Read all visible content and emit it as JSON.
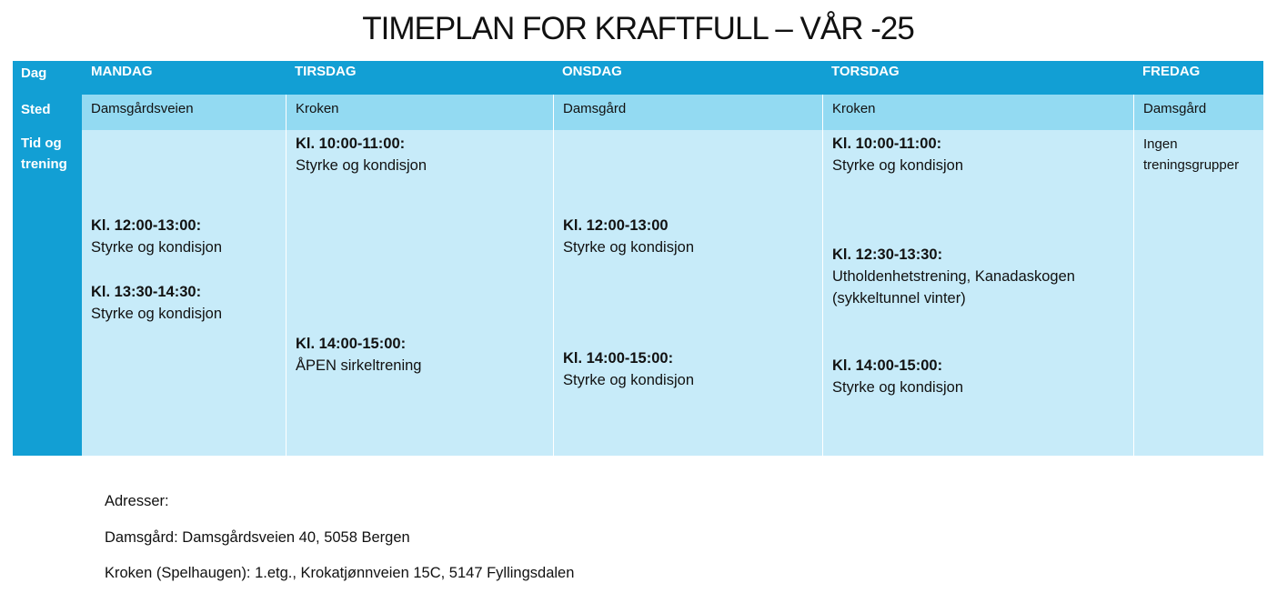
{
  "title": "TIMEPLAN FOR KRAFTFULL – VÅR -25",
  "row_labels": {
    "day": "Dag",
    "place": "Sted",
    "training_line1": "Tid og",
    "training_line2": "trening"
  },
  "days": [
    {
      "name": "MANDAG",
      "place": "Damsgårdsveien",
      "sessions": [
        {
          "time": "Kl. 12:00-13:00:",
          "desc": "Styrke og kondisjon"
        },
        {
          "time": "Kl. 13:30-14:30:",
          "desc": "Styrke og kondisjon"
        }
      ]
    },
    {
      "name": "TIRSDAG",
      "place": "Kroken",
      "sessions": [
        {
          "time": "Kl. 10:00-11:00:",
          "desc": "Styrke og kondisjon"
        },
        {
          "time": "Kl. 14:00-15:00:",
          "desc": "ÅPEN sirkeltrening"
        }
      ]
    },
    {
      "name": "ONSDAG",
      "place": "Damsgård",
      "sessions": [
        {
          "time": "Kl. 12:00-13:00",
          "desc": "Styrke og kondisjon"
        },
        {
          "time": "Kl. 14:00-15:00:",
          "desc": "Styrke og kondisjon"
        }
      ]
    },
    {
      "name": "TORSDAG",
      "place": "Kroken",
      "sessions": [
        {
          "time": "Kl. 10:00-11:00:",
          "desc": "Styrke og kondisjon"
        },
        {
          "time": "Kl. 12:30-13:30:",
          "desc": "Utholdenhetstrening, Kanadaskogen",
          "desc2": "(sykkeltunnel vinter)"
        },
        {
          "time": "Kl. 14:00-15:00:",
          "desc": "Styrke og kondisjon"
        }
      ]
    },
    {
      "name": "FREDAG",
      "place": "Damsgård",
      "no_sessions_line1": "Ingen",
      "no_sessions_line2": "treningsgrupper"
    }
  ],
  "addresses": {
    "heading": "Adresser:",
    "lines": [
      "Damsgård: Damsgårdsveien 40, 5058 Bergen",
      "Kroken (Spelhaugen): 1.etg., Krokatjønnveien 15C, 5147 Fyllingsdalen"
    ]
  }
}
